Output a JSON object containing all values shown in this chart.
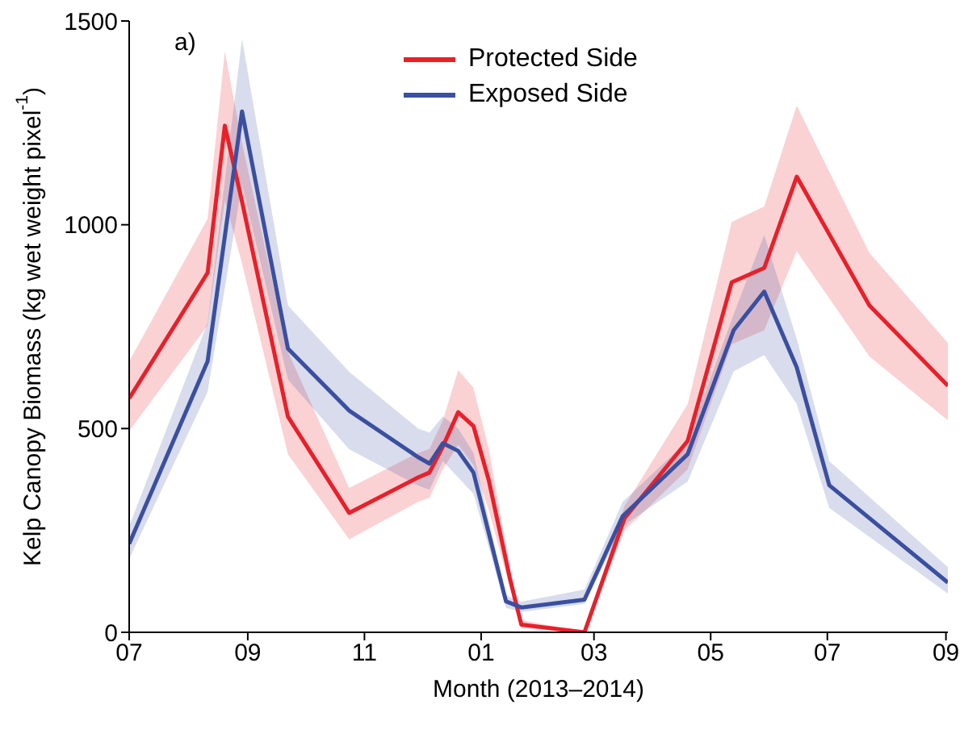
{
  "chart_data": {
    "type": "line",
    "xlabel": "Month (2013–2014)",
    "ylabel": "Kelp Canopy Biomass (kg wet weight pixel$^{-1}$)",
    "annotations": [
      "a)"
    ],
    "xlim": [
      "2013-07-01",
      "2014-09-02"
    ],
    "xticks": [
      {
        "value": "2013-07",
        "label": "07"
      },
      {
        "value": "2013-09",
        "label": "09"
      },
      {
        "value": "2013-11",
        "label": "11"
      },
      {
        "value": "2014-01",
        "label": "01"
      },
      {
        "value": "2014-03",
        "label": "03"
      },
      {
        "value": "2014-05",
        "label": "05"
      },
      {
        "value": "2014-07",
        "label": "07"
      },
      {
        "value": "2014-09",
        "label": "09"
      }
    ],
    "ylim": [
      0,
      1500
    ],
    "yticks": [
      0,
      500,
      1000,
      1500
    ],
    "grid": false,
    "legend": "top",
    "marker": "none",
    "line_style": "solid",
    "series": [
      {
        "name": "Protected Side",
        "color": "#e8202a",
        "x": [
          "2013-07-01",
          "2013-08-11",
          "2013-08-20",
          "2013-08-29",
          "2013-09-22",
          "2013-10-24",
          "2013-11-29",
          "2013-12-05",
          "2013-12-12",
          "2013-12-20",
          "2013-12-28",
          "2014-01-05",
          "2014-01-16",
          "2014-01-22",
          "2014-02-24",
          "2014-03-17",
          "2014-04-19",
          "2014-05-12",
          "2014-05-29",
          "2014-06-15",
          "2014-07-23",
          "2014-09-02"
        ],
        "values": [
          574,
          882,
          1243,
          1057,
          529,
          293,
          380,
          392,
          456,
          540,
          506,
          373,
          133,
          19,
          0,
          280,
          470,
          859,
          894,
          1118,
          802,
          605
        ],
        "lower": [
          494,
          753,
          1060,
          905,
          437,
          228,
          320,
          330,
          400,
          460,
          410,
          300,
          110,
          10,
          0,
          250,
          400,
          707,
          741,
          935,
          677,
          520
        ],
        "upper": [
          665,
          1015,
          1426,
          1200,
          688,
          354,
          440,
          450,
          520,
          643,
          600,
          450,
          160,
          30,
          0,
          310,
          560,
          1007,
          1045,
          1292,
          931,
          710
        ]
      },
      {
        "name": "Exposed Side",
        "color": "#3a4fa0",
        "x": [
          "2013-07-01",
          "2013-08-11",
          "2013-08-29",
          "2013-09-22",
          "2013-10-24",
          "2013-11-29",
          "2013-12-05",
          "2013-12-12",
          "2013-12-20",
          "2013-12-28",
          "2014-01-14",
          "2014-01-22",
          "2014-02-24",
          "2014-03-16",
          "2014-04-19",
          "2014-05-13",
          "2014-05-29",
          "2014-06-15",
          "2014-07-02",
          "2014-09-02"
        ],
        "values": [
          217,
          665,
          1278,
          696,
          544,
          430,
          414,
          464,
          445,
          392,
          76,
          61,
          80,
          285,
          437,
          741,
          836,
          650,
          361,
          122
        ],
        "lower": [
          180,
          590,
          1100,
          620,
          449,
          360,
          350,
          420,
          380,
          340,
          60,
          50,
          70,
          260,
          370,
          640,
          680,
          560,
          305,
          95
        ],
        "upper": [
          260,
          760,
          1456,
          802,
          639,
          500,
          490,
          530,
          500,
          440,
          90,
          75,
          105,
          320,
          470,
          780,
          975,
          720,
          420,
          160
        ]
      }
    ]
  }
}
